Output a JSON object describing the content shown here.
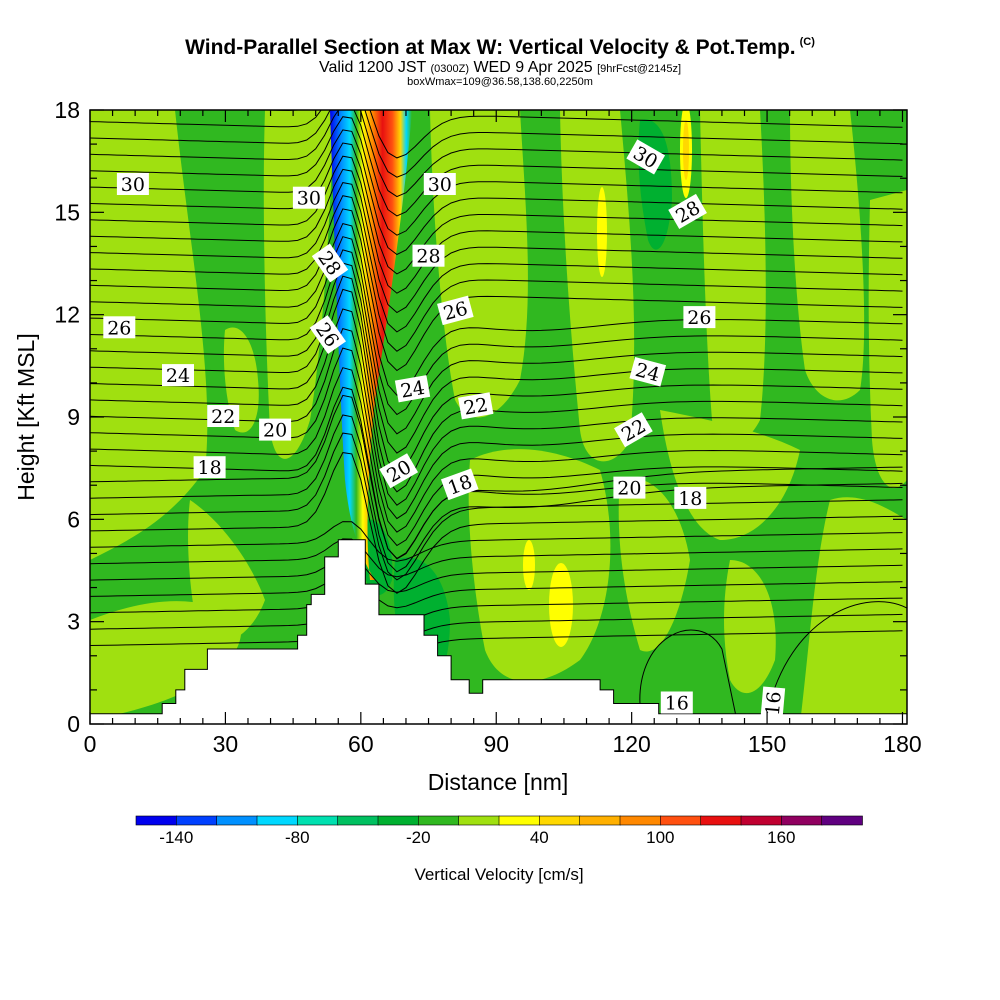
{
  "title": {
    "main": "Wind-Parallel Section at Max W: Vertical Velocity & Pot.Temp.",
    "copyright": "(C)",
    "valid_prefix": "Valid 1200 JST",
    "valid_small": "(0300Z)",
    "valid_date": "WED 9 Apr 2025",
    "forecast": "[9hrFcst@2145z]",
    "box_info": "boxWmax=109@36.58,138.60,2250m"
  },
  "chart_data": {
    "type": "heatmap",
    "xlabel": "Distance [nm]",
    "ylabel": "Height [Kft MSL]",
    "xlim": [
      0,
      181
    ],
    "ylim": [
      0,
      18
    ],
    "x_ticks": [
      0,
      30,
      60,
      90,
      120,
      150,
      180
    ],
    "y_ticks": [
      0,
      3,
      6,
      9,
      12,
      15,
      18
    ],
    "colorbar": {
      "label": "Vertical Velocity [cm/s]",
      "min": -160,
      "max": 200,
      "step": 20,
      "tick_labels": [
        "-140",
        "-80",
        "-20",
        "40",
        "100",
        "160"
      ],
      "tick_values": [
        -140,
        -80,
        -20,
        40,
        100,
        160
      ],
      "colors": [
        "#0000ee",
        "#0040ff",
        "#0090ff",
        "#00d8ff",
        "#00e0b0",
        "#00c060",
        "#00b030",
        "#30b820",
        "#a0e010",
        "#ffff00",
        "#ffd800",
        "#ffb000",
        "#ff8800",
        "#ff5010",
        "#e81010",
        "#c00030",
        "#900060",
        "#600080"
      ]
    },
    "terrain": [
      [
        0,
        0.3
      ],
      [
        16,
        0.3
      ],
      [
        16,
        0.6
      ],
      [
        19,
        0.6
      ],
      [
        19,
        1.0
      ],
      [
        21,
        1.0
      ],
      [
        21,
        1.6
      ],
      [
        26,
        1.6
      ],
      [
        26,
        2.2
      ],
      [
        46,
        2.2
      ],
      [
        46,
        2.6
      ],
      [
        48,
        2.6
      ],
      [
        48,
        3.5
      ],
      [
        49,
        3.5
      ],
      [
        49,
        3.8
      ],
      [
        52,
        3.8
      ],
      [
        52,
        4.9
      ],
      [
        55,
        4.9
      ],
      [
        55,
        5.4
      ],
      [
        61,
        5.4
      ],
      [
        61,
        4.1
      ],
      [
        64,
        4.1
      ],
      [
        64,
        3.2
      ],
      [
        74,
        3.2
      ],
      [
        74,
        2.6
      ],
      [
        77,
        2.6
      ],
      [
        77,
        2.0
      ],
      [
        80,
        2.0
      ],
      [
        80,
        1.3
      ],
      [
        84,
        1.3
      ],
      [
        84,
        0.9
      ],
      [
        87,
        0.9
      ],
      [
        87,
        1.3
      ],
      [
        113,
        1.3
      ],
      [
        113,
        1.0
      ],
      [
        116,
        1.0
      ],
      [
        116,
        0.6
      ],
      [
        126,
        0.6
      ],
      [
        126,
        0.3
      ],
      [
        181,
        0.3
      ]
    ],
    "contour_labels": [
      {
        "text": "30",
        "x": 9.5,
        "y": 15.8,
        "rot": 0
      },
      {
        "text": "30",
        "x": 48.5,
        "y": 15.4,
        "rot": 0
      },
      {
        "text": "30",
        "x": 77.5,
        "y": 15.8,
        "rot": 0
      },
      {
        "text": "30",
        "x": 123,
        "y": 16.6,
        "rot": 30
      },
      {
        "text": "28",
        "x": 53,
        "y": 13.5,
        "rot": 55
      },
      {
        "text": "28",
        "x": 75,
        "y": 13.7,
        "rot": 0
      },
      {
        "text": "28",
        "x": 132.5,
        "y": 15.0,
        "rot": -30
      },
      {
        "text": "26",
        "x": 6.5,
        "y": 11.6,
        "rot": 0
      },
      {
        "text": "26",
        "x": 52.5,
        "y": 11.4,
        "rot": 55
      },
      {
        "text": "26",
        "x": 81,
        "y": 12.1,
        "rot": -15
      },
      {
        "text": "26",
        "x": 135,
        "y": 11.9,
        "rot": 0
      },
      {
        "text": "24",
        "x": 19.5,
        "y": 10.2,
        "rot": 0
      },
      {
        "text": "24",
        "x": 71.5,
        "y": 9.8,
        "rot": -10
      },
      {
        "text": "24",
        "x": 123.5,
        "y": 10.3,
        "rot": 15
      },
      {
        "text": "22",
        "x": 29.5,
        "y": 9.0,
        "rot": 0
      },
      {
        "text": "22",
        "x": 85.5,
        "y": 9.3,
        "rot": -10
      },
      {
        "text": "22",
        "x": 120.5,
        "y": 8.6,
        "rot": -30
      },
      {
        "text": "20",
        "x": 41,
        "y": 8.6,
        "rot": 0
      },
      {
        "text": "20",
        "x": 68.5,
        "y": 7.4,
        "rot": -30
      },
      {
        "text": "20",
        "x": 119.5,
        "y": 6.9,
        "rot": 0
      },
      {
        "text": "18",
        "x": 26.5,
        "y": 7.5,
        "rot": 0
      },
      {
        "text": "18",
        "x": 82,
        "y": 7.0,
        "rot": -20
      },
      {
        "text": "18",
        "x": 133,
        "y": 6.6,
        "rot": 0
      },
      {
        "text": "16",
        "x": 130,
        "y": 0.6,
        "rot": 0
      },
      {
        "text": "16",
        "x": 151.5,
        "y": 0.6,
        "rot": -85
      }
    ]
  }
}
